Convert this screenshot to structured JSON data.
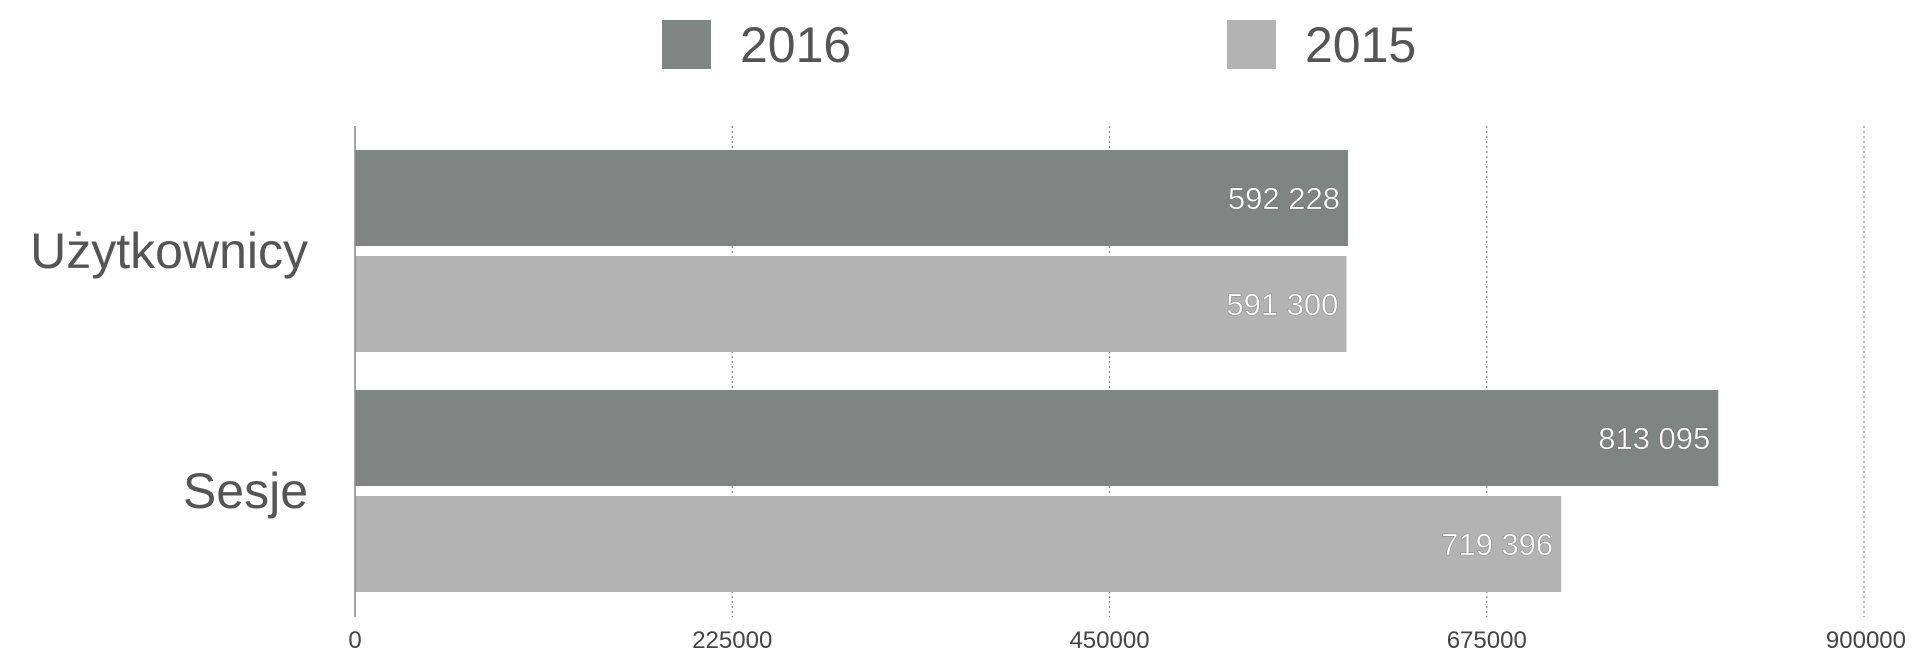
{
  "chart_data": {
    "type": "bar",
    "orientation": "horizontal",
    "categories": [
      "Użytkownicy",
      "Sesje"
    ],
    "series": [
      {
        "name": "2016",
        "color": "#7f8582",
        "values": [
          592228,
          813095
        ],
        "labels": [
          "592 228",
          "813 095"
        ]
      },
      {
        "name": "2015",
        "color": "#b3b3b3",
        "values": [
          591300,
          719396
        ],
        "labels": [
          "591 300",
          "719 396"
        ]
      }
    ],
    "xlim": [
      0,
      900000
    ],
    "ticks": [
      0,
      225000,
      450000,
      675000,
      900000
    ],
    "tick_labels": [
      "0",
      "225000",
      "450000",
      "675000",
      "900000"
    ],
    "grid": "vertical dotted",
    "legend_position": "top-center"
  }
}
